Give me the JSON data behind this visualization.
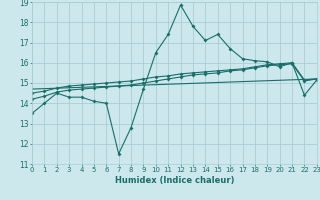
{
  "xlabel": "Humidex (Indice chaleur)",
  "bg_color": "#cce8ec",
  "grid_color": "#aacdd4",
  "line_color": "#1a6e6a",
  "xmin": 0,
  "xmax": 23,
  "ymin": 11,
  "ymax": 19,
  "x_ticks": [
    0,
    1,
    2,
    3,
    4,
    5,
    6,
    7,
    8,
    9,
    10,
    11,
    12,
    13,
    14,
    15,
    16,
    17,
    18,
    19,
    20,
    21,
    22,
    23
  ],
  "y_ticks": [
    11,
    12,
    13,
    14,
    15,
    16,
    17,
    18,
    19
  ],
  "line1_x": [
    0,
    1,
    2,
    3,
    4,
    5,
    6,
    7,
    8,
    9,
    10,
    11,
    12,
    13,
    14,
    15,
    16,
    17,
    18,
    19,
    20,
    21,
    22,
    23
  ],
  "line1_y": [
    13.5,
    14.0,
    14.5,
    14.3,
    14.3,
    14.1,
    14.0,
    11.5,
    12.8,
    14.7,
    16.5,
    17.4,
    18.85,
    17.8,
    17.1,
    17.4,
    16.7,
    16.2,
    16.1,
    16.05,
    15.8,
    16.0,
    14.4,
    15.15
  ],
  "line2_x": [
    0,
    1,
    2,
    3,
    4,
    5,
    6,
    7,
    8,
    9,
    10,
    11,
    12,
    13,
    14,
    15,
    16,
    17,
    18,
    19,
    20,
    21,
    22,
    23
  ],
  "line2_y": [
    14.2,
    14.35,
    14.55,
    14.65,
    14.7,
    14.75,
    14.8,
    14.85,
    14.9,
    15.0,
    15.1,
    15.2,
    15.3,
    15.4,
    15.45,
    15.5,
    15.6,
    15.65,
    15.75,
    15.85,
    15.9,
    15.95,
    15.1,
    15.2
  ],
  "line3_x": [
    0,
    1,
    2,
    3,
    4,
    5,
    6,
    7,
    8,
    9,
    10,
    11,
    12,
    13,
    14,
    15,
    16,
    17,
    18,
    19,
    20,
    21,
    22,
    23
  ],
  "line3_y": [
    14.5,
    14.6,
    14.75,
    14.85,
    14.9,
    14.95,
    15.0,
    15.05,
    15.1,
    15.2,
    15.3,
    15.35,
    15.45,
    15.5,
    15.55,
    15.6,
    15.65,
    15.7,
    15.8,
    15.9,
    15.95,
    16.0,
    15.15,
    15.2
  ],
  "line4_x": [
    0,
    23
  ],
  "line4_y": [
    14.7,
    15.2
  ]
}
